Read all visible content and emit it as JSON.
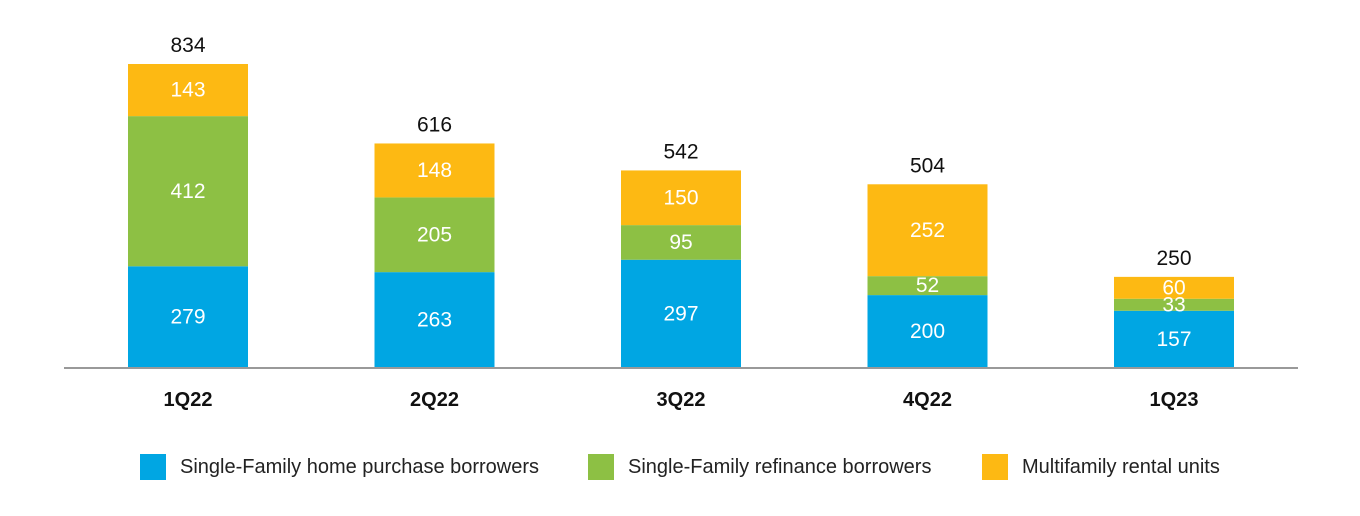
{
  "chart_data": {
    "type": "bar",
    "stacked": true,
    "categories": [
      "1Q22",
      "2Q22",
      "3Q22",
      "4Q22",
      "1Q23"
    ],
    "series": [
      {
        "name": "Single-Family home purchase borrowers",
        "color": "#00A6E3",
        "values": [
          279,
          263,
          297,
          200,
          157
        ]
      },
      {
        "name": "Single-Family refinance borrowers",
        "color": "#8DC044",
        "values": [
          412,
          205,
          95,
          52,
          33
        ]
      },
      {
        "name": "Multifamily rental units",
        "color": "#FDB913",
        "values": [
          143,
          148,
          150,
          252,
          60
        ]
      }
    ],
    "totals": [
      834,
      616,
      542,
      504,
      250
    ],
    "ylim": [
      0,
      834
    ],
    "grid": false,
    "legend_position": "bottom"
  }
}
